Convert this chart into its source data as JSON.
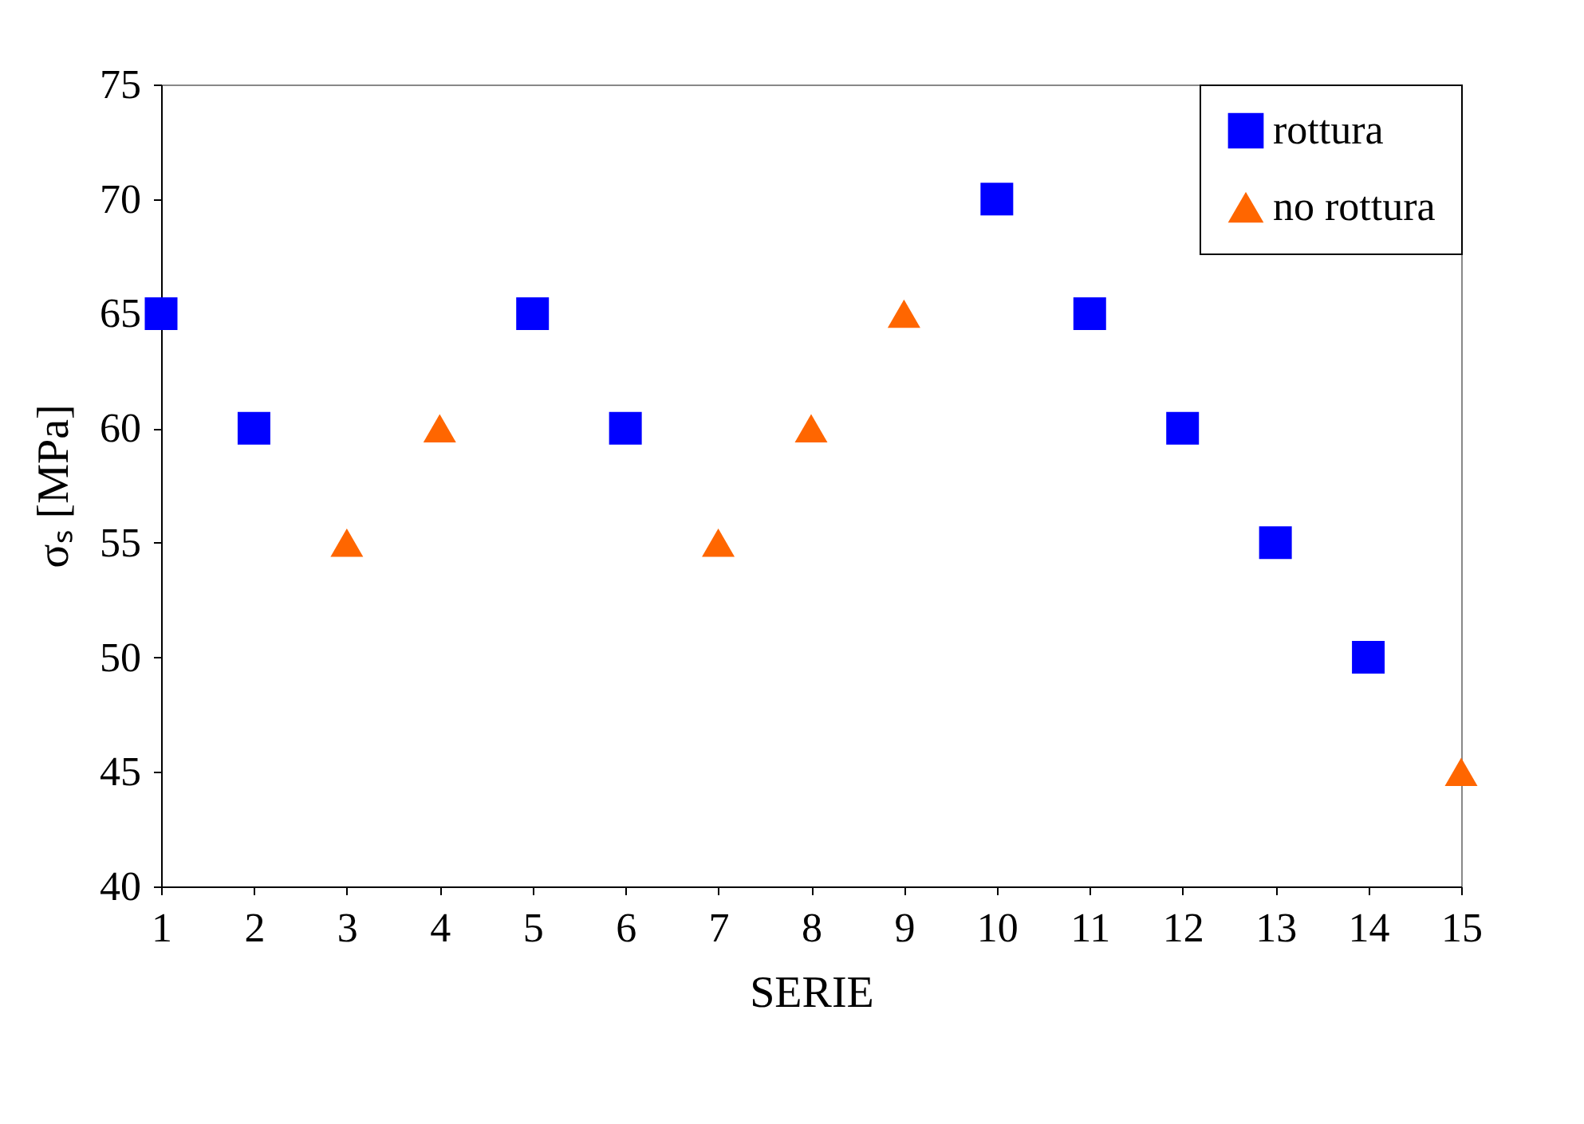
{
  "chart_data": {
    "type": "scatter",
    "xlabel": "SERIE",
    "ylabel": "σₛ [MPa]",
    "series": [
      {
        "name": "rottura",
        "color": "#0000ff",
        "marker": "square",
        "x": [
          1,
          2,
          5,
          6,
          10,
          11,
          12,
          13,
          14
        ],
        "values": [
          65,
          60,
          65,
          60,
          70,
          65,
          60,
          55,
          50
        ]
      },
      {
        "name": "no rottura",
        "color": "#ff6600",
        "marker": "triangle",
        "x": [
          3,
          4,
          7,
          8,
          9,
          15
        ],
        "values": [
          55,
          60,
          55,
          60,
          65,
          45
        ]
      }
    ],
    "xlim": [
      1,
      15
    ],
    "xticks": [
      1,
      2,
      3,
      4,
      5,
      6,
      7,
      8,
      9,
      10,
      11,
      12,
      13,
      14,
      15
    ],
    "ylim": [
      40,
      75
    ],
    "yticks": [
      40,
      45,
      50,
      55,
      60,
      65,
      70,
      75
    ],
    "grid": false,
    "legend": "top right"
  }
}
